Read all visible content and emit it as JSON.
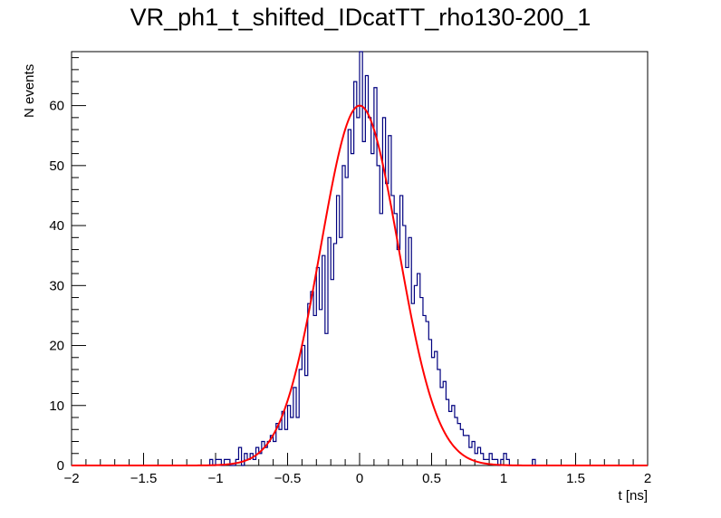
{
  "chart_data": {
    "type": "histogram",
    "title": "VR_ph1_t_shifted_IDcatTT_rho130-200_1",
    "xlabel": "t [ns]",
    "ylabel": "N events",
    "xlim": [
      -2,
      2
    ],
    "ylim": [
      0,
      69
    ],
    "x_ticks": [
      "-2",
      "-1.5",
      "-1",
      "-0.5",
      "0",
      "0.5",
      "1",
      "1.5",
      "2"
    ],
    "y_ticks": [
      "0",
      "10",
      "20",
      "30",
      "40",
      "50",
      "60"
    ],
    "series": [
      {
        "name": "histogram",
        "color": "#00007f",
        "bin_width": 0.02,
        "bins": [
          [
            -1.04,
            1
          ],
          [
            -1.0,
            1
          ],
          [
            -0.98,
            1
          ],
          [
            -0.96,
            0
          ],
          [
            -0.94,
            1
          ],
          [
            -0.92,
            1
          ],
          [
            -0.9,
            0
          ],
          [
            -0.88,
            0
          ],
          [
            -0.86,
            1
          ],
          [
            -0.84,
            3
          ],
          [
            -0.82,
            0
          ],
          [
            -0.8,
            2
          ],
          [
            -0.78,
            1
          ],
          [
            -0.76,
            2
          ],
          [
            -0.74,
            1
          ],
          [
            -0.72,
            3
          ],
          [
            -0.7,
            2
          ],
          [
            -0.68,
            4
          ],
          [
            -0.66,
            3
          ],
          [
            -0.64,
            4
          ],
          [
            -0.62,
            5
          ],
          [
            -0.6,
            4
          ],
          [
            -0.58,
            7
          ],
          [
            -0.56,
            6
          ],
          [
            -0.54,
            9
          ],
          [
            -0.52,
            6
          ],
          [
            -0.5,
            10
          ],
          [
            -0.48,
            8
          ],
          [
            -0.46,
            13
          ],
          [
            -0.44,
            8
          ],
          [
            -0.42,
            16
          ],
          [
            -0.4,
            20
          ],
          [
            -0.38,
            15
          ],
          [
            -0.36,
            27
          ],
          [
            -0.34,
            29
          ],
          [
            -0.32,
            25
          ],
          [
            -0.3,
            33
          ],
          [
            -0.28,
            26
          ],
          [
            -0.26,
            35
          ],
          [
            -0.24,
            22
          ],
          [
            -0.22,
            38
          ],
          [
            -0.2,
            31
          ],
          [
            -0.18,
            37
          ],
          [
            -0.16,
            45
          ],
          [
            -0.14,
            38
          ],
          [
            -0.12,
            50
          ],
          [
            -0.1,
            48
          ],
          [
            -0.08,
            56
          ],
          [
            -0.06,
            52
          ],
          [
            -0.04,
            64
          ],
          [
            -0.02,
            58
          ],
          [
            0.0,
            69
          ],
          [
            0.02,
            54
          ],
          [
            0.04,
            65
          ],
          [
            0.06,
            58
          ],
          [
            0.08,
            52
          ],
          [
            0.1,
            63
          ],
          [
            0.12,
            50
          ],
          [
            0.14,
            42
          ],
          [
            0.16,
            58
          ],
          [
            0.18,
            47
          ],
          [
            0.2,
            55
          ],
          [
            0.22,
            45
          ],
          [
            0.24,
            42
          ],
          [
            0.26,
            36
          ],
          [
            0.28,
            45
          ],
          [
            0.3,
            40
          ],
          [
            0.32,
            33
          ],
          [
            0.34,
            38
          ],
          [
            0.36,
            27
          ],
          [
            0.38,
            30
          ],
          [
            0.4,
            32
          ],
          [
            0.42,
            28
          ],
          [
            0.44,
            25
          ],
          [
            0.46,
            24
          ],
          [
            0.48,
            21
          ],
          [
            0.5,
            18
          ],
          [
            0.52,
            19
          ],
          [
            0.54,
            16
          ],
          [
            0.56,
            13
          ],
          [
            0.58,
            14
          ],
          [
            0.6,
            11
          ],
          [
            0.62,
            9
          ],
          [
            0.64,
            10
          ],
          [
            0.66,
            8
          ],
          [
            0.68,
            7
          ],
          [
            0.7,
            6
          ],
          [
            0.72,
            5
          ],
          [
            0.74,
            5
          ],
          [
            0.76,
            3
          ],
          [
            0.78,
            4
          ],
          [
            0.8,
            2
          ],
          [
            0.82,
            3
          ],
          [
            0.84,
            2
          ],
          [
            0.86,
            1
          ],
          [
            0.88,
            1
          ],
          [
            0.9,
            2
          ],
          [
            0.92,
            1
          ],
          [
            0.94,
            1
          ],
          [
            0.96,
            0
          ],
          [
            0.98,
            1
          ],
          [
            1.0,
            2
          ],
          [
            1.02,
            1
          ],
          [
            1.2,
            1
          ]
        ]
      },
      {
        "name": "gaussian fit",
        "color": "#ff0000",
        "type": "line",
        "amplitude": 60,
        "mean": 0.0,
        "sigma": 0.27
      }
    ]
  }
}
